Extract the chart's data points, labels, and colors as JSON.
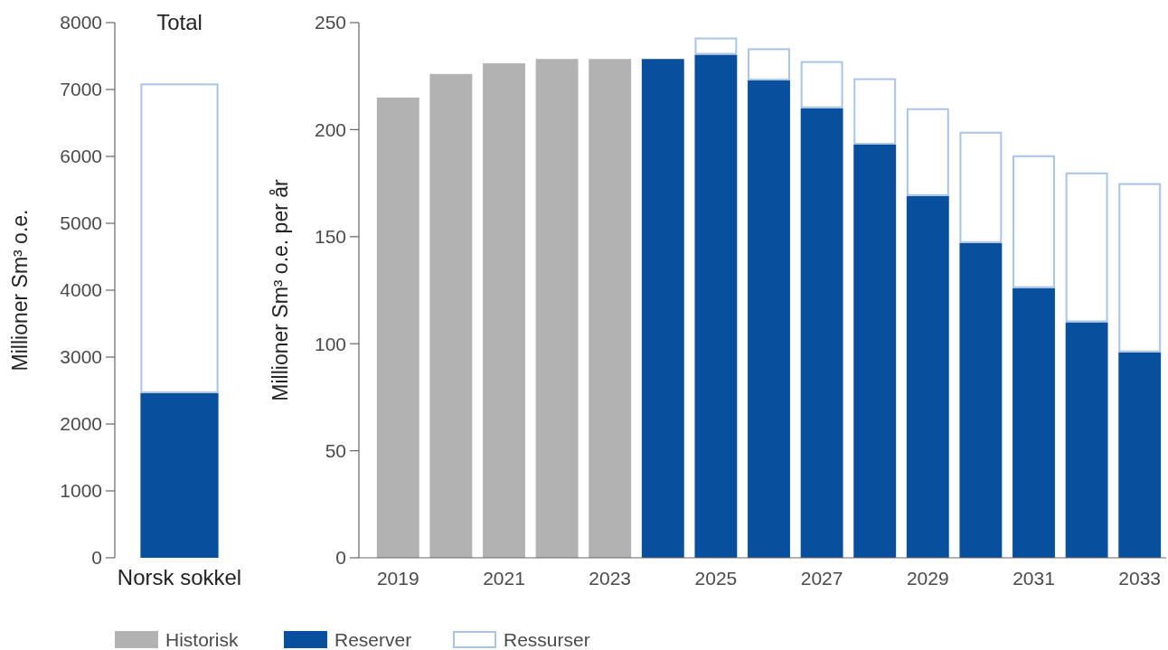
{
  "chart_data": [
    {
      "type": "bar",
      "title": "Total",
      "ylabel": "Millioner Sm³ o.e.",
      "categories": [
        "Norsk sokkel"
      ],
      "stacked": true,
      "ylim": [
        0,
        8000
      ],
      "yticks": [
        0,
        1000,
        2000,
        3000,
        4000,
        5000,
        6000,
        7000,
        8000
      ],
      "grid": false,
      "legend": false,
      "series": [
        {
          "color": "#084f9e",
          "values": [
            2460
          ]
        },
        {
          "color": "#a9c4e4",
          "values": [
            4630
          ]
        }
      ]
    },
    {
      "type": "bar",
      "ylabel": "Millioner Sm³ o.e. per år",
      "categories": [
        "2019",
        null,
        "2021",
        null,
        "2023",
        null,
        "2025",
        null,
        "2027",
        null,
        "2029",
        null,
        "2031",
        null,
        "2033"
      ],
      "stacked": true,
      "ylim": [
        0,
        250
      ],
      "yticks": [
        0,
        50,
        100,
        150,
        200,
        250
      ],
      "grid": false,
      "legend": "bottom",
      "series": [
        {
          "name": "Historisk",
          "color": "#b2b2b2",
          "values": [
            215,
            226,
            231,
            233,
            233,
            null,
            null,
            null,
            null,
            null,
            null,
            null,
            null,
            null,
            null
          ]
        },
        {
          "name": "Reserver",
          "color": "#084f9e",
          "values": [
            null,
            null,
            null,
            null,
            null,
            233,
            235,
            223,
            210,
            193,
            169,
            147,
            126,
            110,
            96
          ]
        },
        {
          "name": "Ressurser",
          "color": "#a9c4e4",
          "values": [
            null,
            null,
            null,
            null,
            null,
            null,
            8,
            15,
            22,
            31,
            41,
            52,
            62,
            70,
            79
          ]
        }
      ]
    }
  ]
}
